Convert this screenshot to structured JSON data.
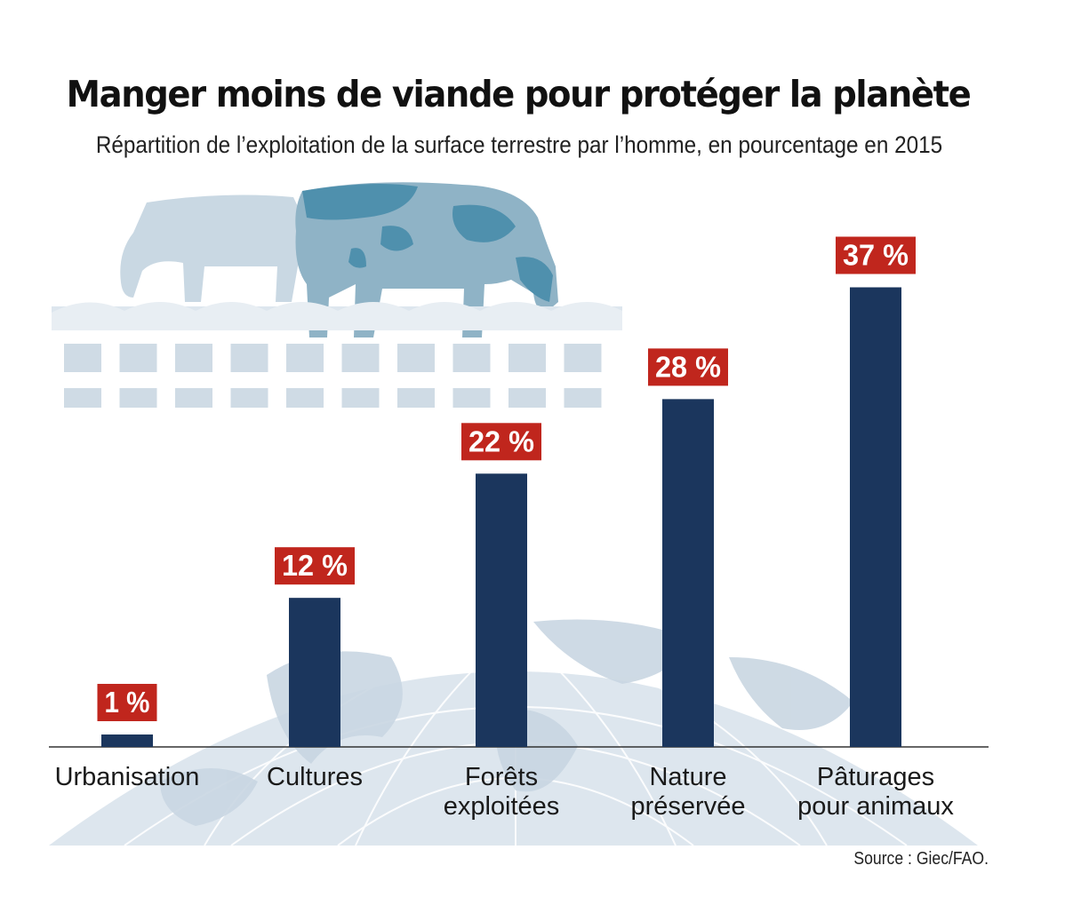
{
  "header": {
    "title": "Manger moins de viande pour protéger la planète",
    "subtitle": "Répartition de l’exploitation de la surface terrestre par l’homme, en pourcentage en 2015"
  },
  "footer": {
    "source": "Source : Giec/FAO."
  },
  "colors": {
    "bar": "#1b365d",
    "label_bg": "#c0261d",
    "illustration": "#8fb3c6",
    "illustration_dark": "#4f90ad",
    "globe": "#dde6ee"
  },
  "illustration": {
    "icons": [
      "cow-icon",
      "fence-icon",
      "globe-icon"
    ]
  },
  "chart_data": {
    "type": "bar",
    "categories": [
      [
        "Urbanisation"
      ],
      [
        "Cultures"
      ],
      [
        "Forêts",
        "exploitées"
      ],
      [
        "Nature",
        "préservée"
      ],
      [
        "Pâturages",
        "pour animaux"
      ]
    ],
    "values": [
      1,
      12,
      22,
      28,
      37
    ],
    "value_labels": [
      "1 %",
      "12 %",
      "22 %",
      "28 %",
      "37 %"
    ],
    "unit": "%",
    "ylim": [
      0,
      40
    ],
    "grid": false,
    "legend": "none"
  }
}
